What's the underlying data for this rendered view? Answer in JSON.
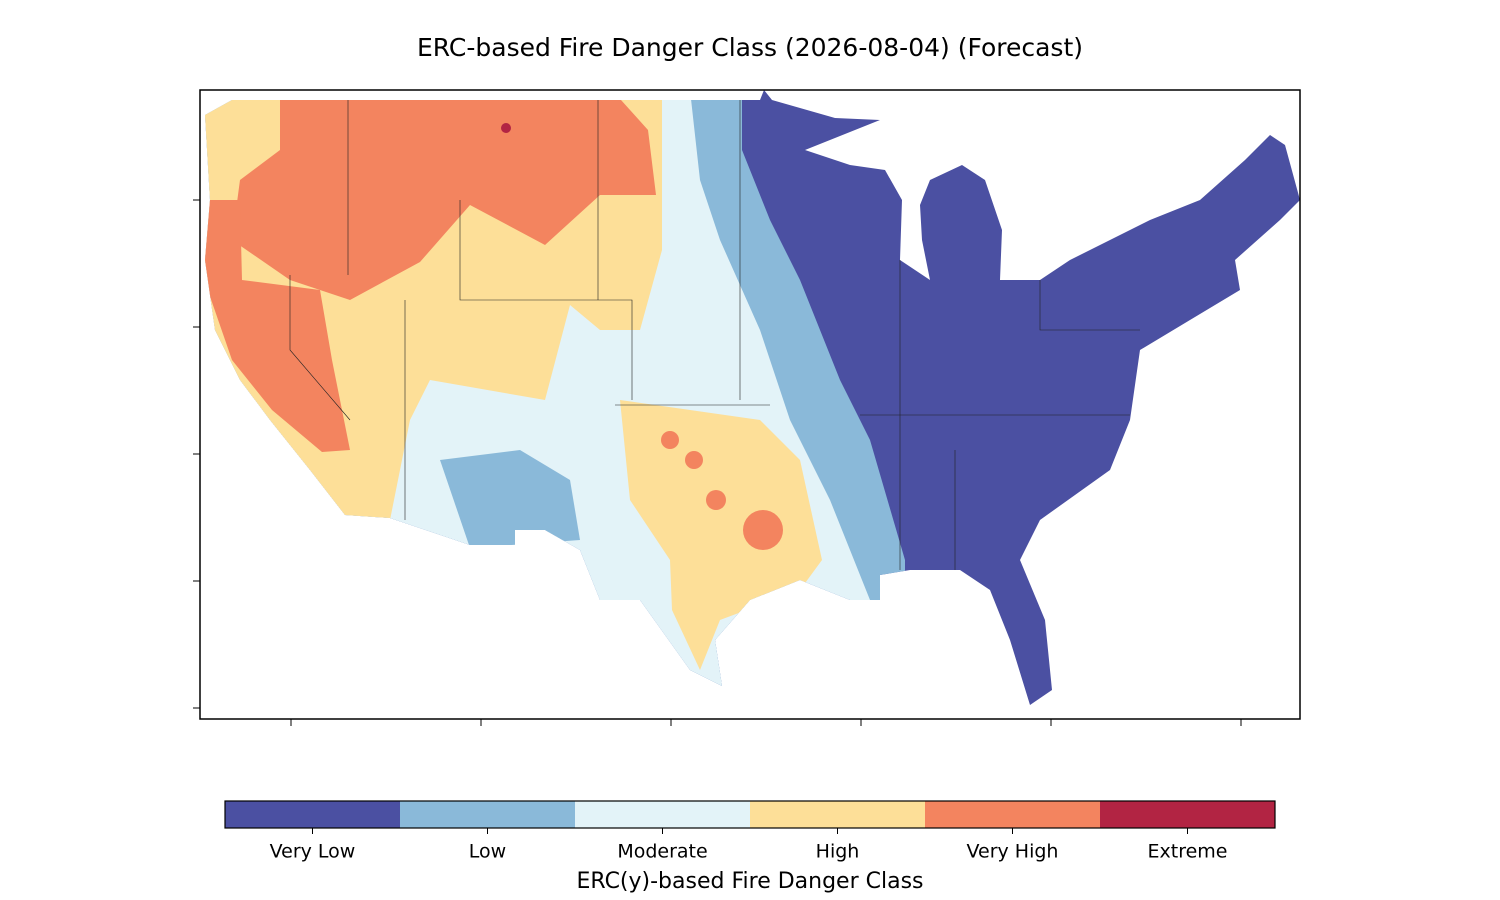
{
  "title": "ERC-based Fire Danger Class (2026-08-04) (Forecast)",
  "colorbar": {
    "label": "ERC(y)-based Fire Danger Class",
    "classes": [
      {
        "name": "Very Low",
        "color": "#4b50a2"
      },
      {
        "name": "Low",
        "color": "#8ab9d9"
      },
      {
        "name": "Moderate",
        "color": "#e3f3f8"
      },
      {
        "name": "High",
        "color": "#fddf98"
      },
      {
        "name": "Very High",
        "color": "#f3845f"
      },
      {
        "name": "Extreme",
        "color": "#b22443"
      }
    ]
  }
}
